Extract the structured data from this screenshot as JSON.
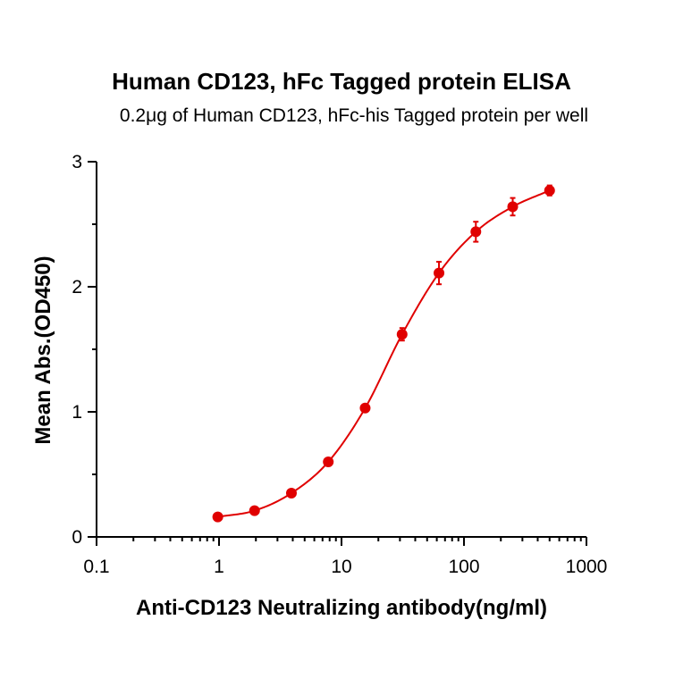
{
  "chart_data": {
    "type": "scatter",
    "title": "Human CD123,  hFc Tagged protein ELISA",
    "subtitle": "0.2μg of Human CD123, hFc-his Tagged protein per well",
    "xlabel": "Anti-CD123 Neutralizing antibody(ng/ml)",
    "ylabel": "Mean Abs.(OD450)",
    "x_scale": "log",
    "xlim": [
      0.1,
      1000
    ],
    "ylim": [
      0,
      3
    ],
    "x_ticks": [
      "0.1",
      "1",
      "10",
      "100",
      "1000"
    ],
    "y_ticks": [
      "0",
      "1",
      "2",
      "3"
    ],
    "grid": false,
    "fit_curve": "4-parameter logistic",
    "series_color": "#e00000",
    "series": [
      {
        "x": [
          0.977,
          1.95,
          3.9,
          7.8,
          15.6,
          31.25,
          62.5,
          125,
          250,
          500
        ],
        "y": [
          0.16,
          0.21,
          0.35,
          0.6,
          1.03,
          1.62,
          2.11,
          2.44,
          2.64,
          2.77
        ],
        "error": [
          0.02,
          0.02,
          0.02,
          0.03,
          0.03,
          0.05,
          0.09,
          0.08,
          0.07,
          0.04
        ]
      }
    ]
  }
}
